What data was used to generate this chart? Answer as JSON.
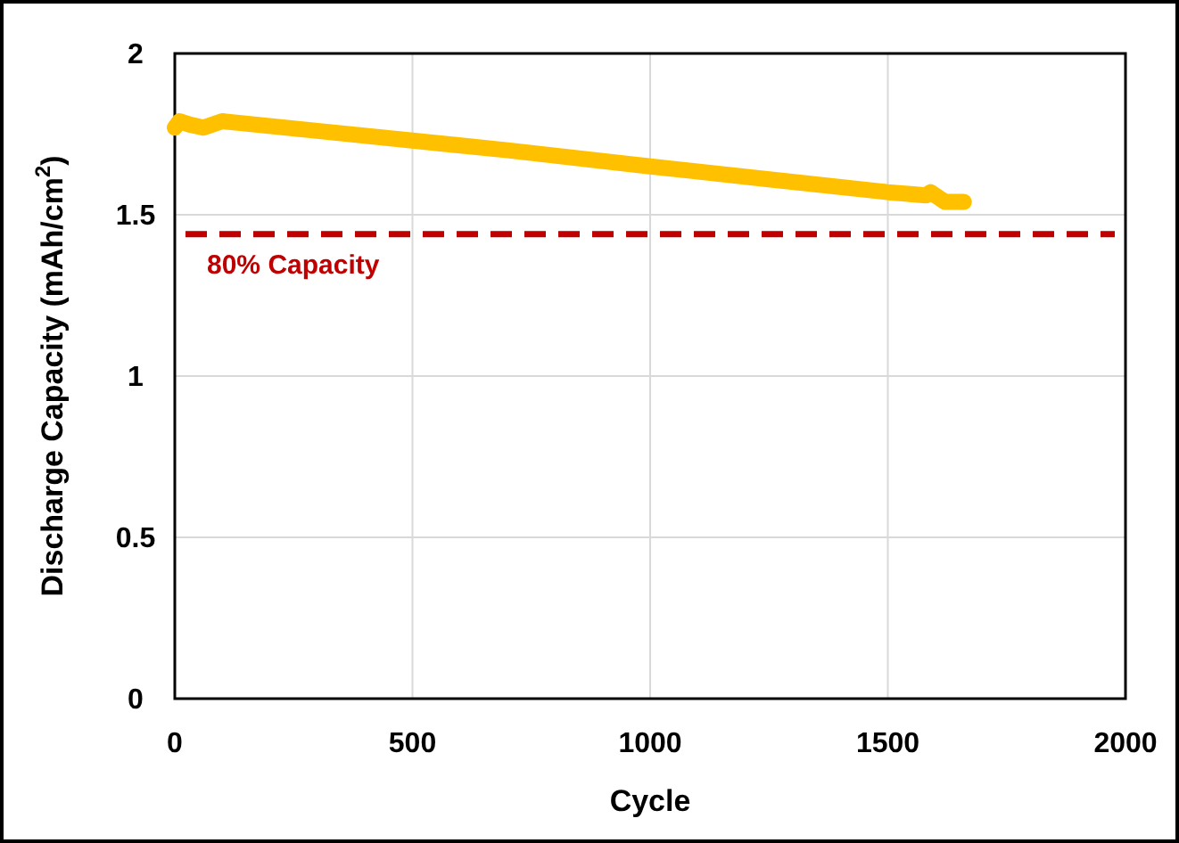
{
  "chart_data": {
    "type": "line",
    "xlabel": "Cycle",
    "ylabel": "Discharge Capacity (mAh/cm$^{2}$)",
    "xlim": [
      0,
      2000
    ],
    "xticks": [
      0,
      500,
      1000,
      1500,
      2000
    ],
    "ylim": [
      0,
      2
    ],
    "yticks": [
      0,
      0.5,
      1,
      1.5,
      2
    ],
    "grid": true,
    "marker": "none",
    "line_style": "solid",
    "series": [
      {
        "color": "#ffc000",
        "x": [
          0,
          10,
          30,
          60,
          100,
          300,
          500,
          700,
          1000,
          1250,
          1500,
          1580,
          1590,
          1620,
          1660
        ],
        "values": [
          1.77,
          1.79,
          1.78,
          1.77,
          1.79,
          1.76,
          1.73,
          1.7,
          1.65,
          1.61,
          1.57,
          1.56,
          1.57,
          1.54,
          1.54
        ]
      }
    ],
    "ref_lines": [
      {
        "axis": "y",
        "value": 1.44,
        "label": "80% Capacity",
        "color": "#c00000",
        "line_style": "dashed"
      }
    ]
  }
}
